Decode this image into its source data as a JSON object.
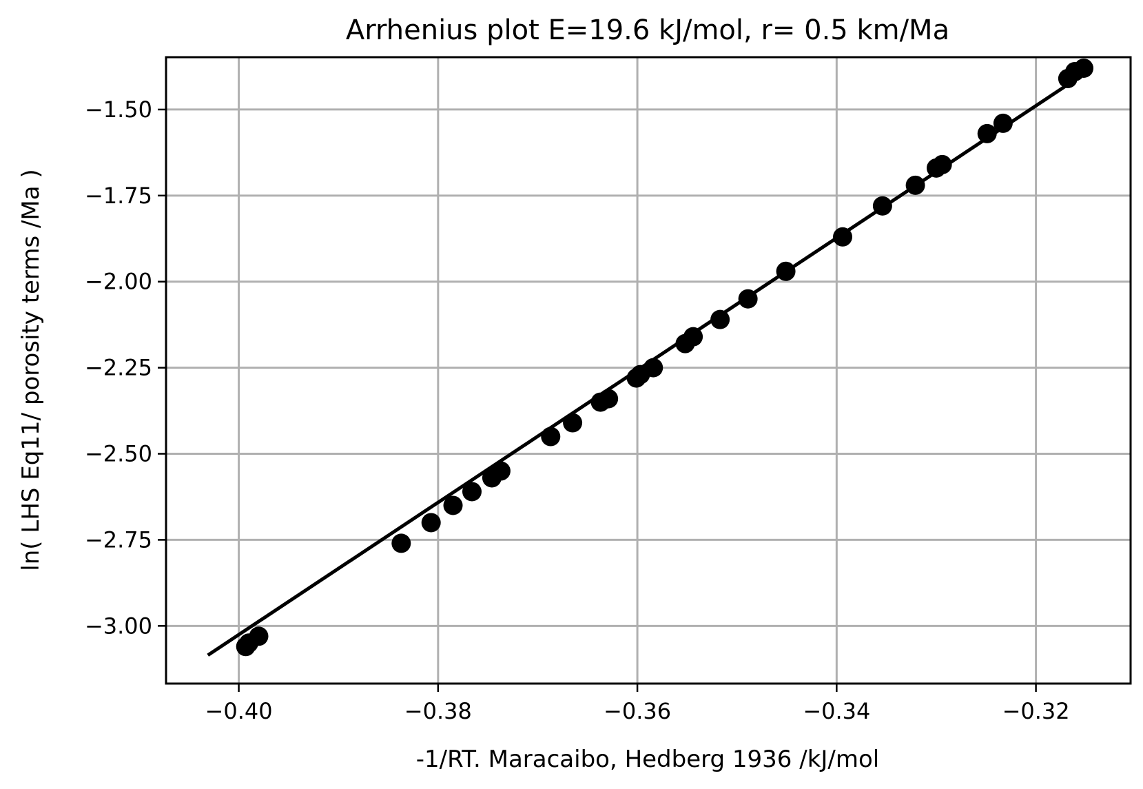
{
  "chart_data": {
    "type": "scatter",
    "title": "Arrhenius plot E=19.6 kJ/mol, r= 0.5 km/Ma",
    "xlabel": "-1/RT.  Maracaibo, Hedberg 1936    /kJ/mol",
    "ylabel": "ln( LHS Eq11/ porosity terms /Ma )",
    "xlim": [
      -0.4073,
      -0.3105
    ],
    "ylim": [
      -3.1675,
      -1.348
    ],
    "x_ticks": [
      -0.4,
      -0.38,
      -0.36,
      -0.34,
      -0.32
    ],
    "x_tick_labels": [
      "−0.40",
      "−0.38",
      "−0.36",
      "−0.34",
      "−0.32"
    ],
    "y_ticks": [
      -1.5,
      -1.75,
      -2.0,
      -2.25,
      -2.5,
      -2.75,
      -3.0
    ],
    "y_tick_labels": [
      "−1.50",
      "−1.75",
      "−2.00",
      "−2.25",
      "−2.50",
      "−2.75",
      "−3.00"
    ],
    "grid": true,
    "series": [
      {
        "kind": "points",
        "color": "#000000",
        "x": [
          -0.3993,
          -0.399,
          -0.398,
          -0.3837,
          -0.3807,
          -0.3785,
          -0.3766,
          -0.3746,
          -0.3737,
          -0.3687,
          -0.3665,
          -0.3637,
          -0.3629,
          -0.3601,
          -0.3597,
          -0.3584,
          -0.3552,
          -0.3544,
          -0.3517,
          -0.3489,
          -0.3451,
          -0.3394,
          -0.3354,
          -0.3321,
          -0.33,
          -0.3294,
          -0.3249,
          -0.3233,
          -0.3168,
          -0.3161,
          -0.3152
        ],
        "y": [
          -3.06,
          -3.05,
          -3.03,
          -2.76,
          -2.7,
          -2.65,
          -2.61,
          -2.57,
          -2.55,
          -2.45,
          -2.41,
          -2.35,
          -2.34,
          -2.28,
          -2.27,
          -2.25,
          -2.18,
          -2.16,
          -2.11,
          -2.05,
          -1.97,
          -1.87,
          -1.78,
          -1.72,
          -1.67,
          -1.66,
          -1.57,
          -1.54,
          -1.41,
          -1.39,
          -1.38
        ]
      },
      {
        "kind": "line",
        "color": "#000000",
        "x": [
          -0.4031,
          -0.315
        ],
        "y": [
          -3.085,
          -1.393
        ]
      }
    ]
  }
}
